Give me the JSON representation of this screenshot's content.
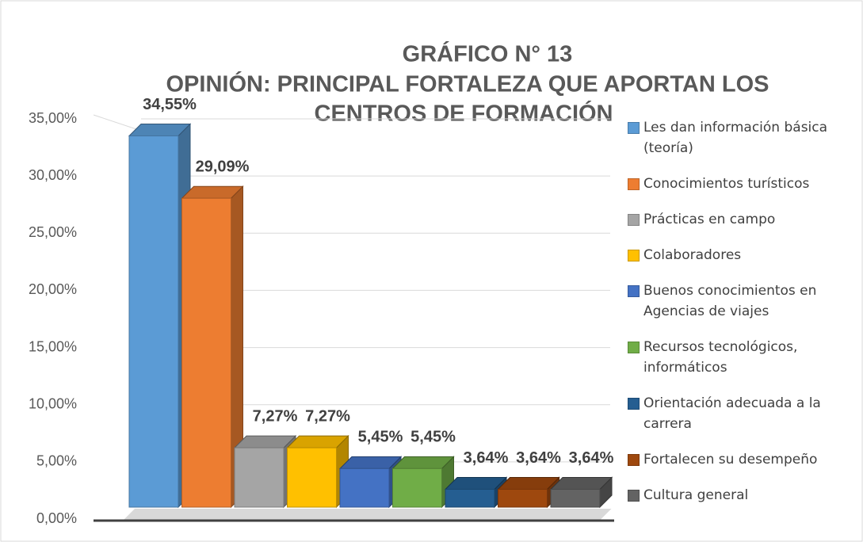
{
  "chart_data": {
    "type": "bar3d",
    "title": [
      "GRÁFICO N° 13",
      "OPINIÓN: PRINCIPAL FORTALEZA QUE APORTAN LOS",
      "CENTROS DE FORMACIÓN"
    ],
    "categories": [
      "Les dan información básica (teoría)",
      "Conocimientos turísticos",
      "Prácticas en campo",
      "Colaboradores",
      "Buenos conocimientos en Agencias de viajes",
      "Recursos tecnológicos, informáticos",
      "Orientación adecuada a la carrera",
      "Fortalecen su desempeño",
      "Cultura general"
    ],
    "values": [
      34.55,
      29.09,
      7.27,
      7.27,
      5.45,
      5.45,
      3.64,
      3.64,
      3.64
    ],
    "value_labels": [
      "34,55%",
      "29,09%",
      "7,27%",
      "7,27%",
      "5,45%",
      "5,45%",
      "3,64%",
      "3,64%",
      "3,64%"
    ],
    "colors": [
      "#5b9bd5",
      "#ed7d31",
      "#a5a5a5",
      "#ffc000",
      "#4472c4",
      "#70ad47",
      "#255e91",
      "#9e480e",
      "#636363"
    ],
    "ylim": [
      0,
      35
    ],
    "yticks": [
      {
        "value": 0,
        "label": "0,00%"
      },
      {
        "value": 5,
        "label": "5,00%"
      },
      {
        "value": 10,
        "label": "10,00%"
      },
      {
        "value": 15,
        "label": "15,00%"
      },
      {
        "value": 20,
        "label": "20,00%"
      },
      {
        "value": 25,
        "label": "25,00%"
      },
      {
        "value": 30,
        "label": "30,00%"
      },
      {
        "value": 35,
        "label": "35,00%"
      }
    ],
    "grid": true,
    "legend": "right"
  }
}
